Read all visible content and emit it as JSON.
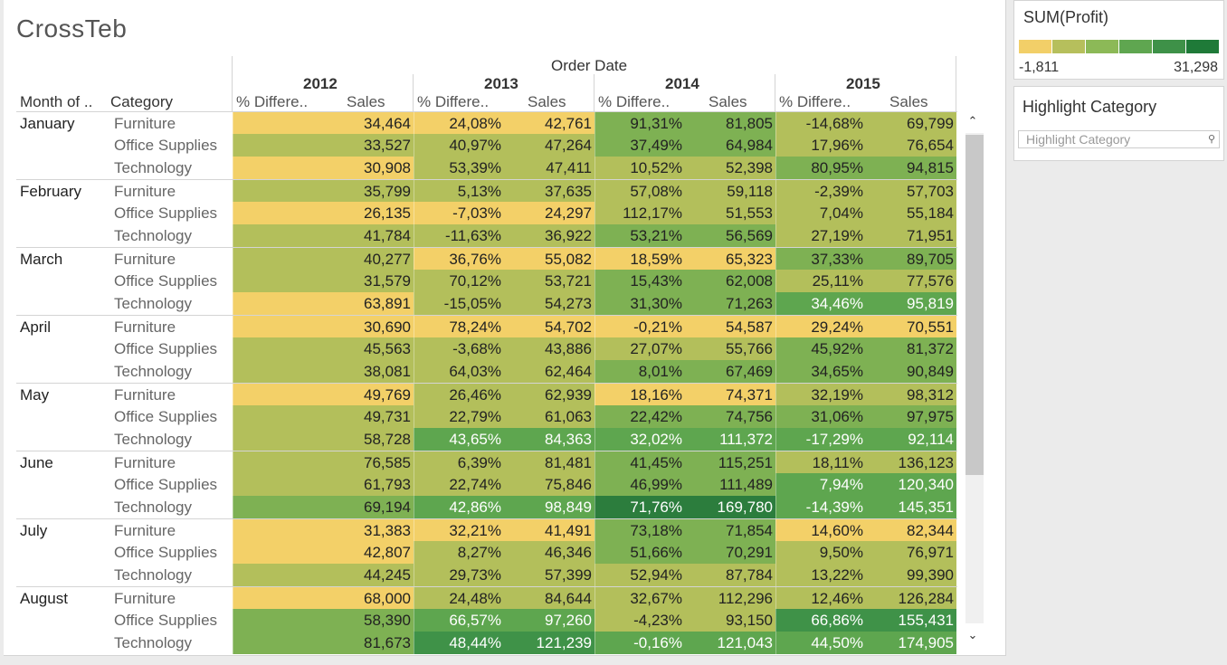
{
  "title": "CrossTeb",
  "headers": {
    "order_date": "Order Date",
    "month_of": "Month of ..",
    "category": "Category",
    "years": [
      "2012",
      "2013",
      "2014",
      "2015"
    ],
    "pct_label": "% Differe..",
    "sales_label": "Sales"
  },
  "legend": {
    "title": "SUM(Profit)",
    "min": "-1,811",
    "max": "31,298",
    "colors": [
      "#f2cf68",
      "#b6bf5c",
      "#8cb957",
      "#5fa650",
      "#3e9148",
      "#1f7a38"
    ]
  },
  "highlight": {
    "title": "Highlight Category",
    "placeholder": "Highlight Category"
  },
  "colors": {
    "y": "#f3d068",
    "l": "#b3bf5b",
    "g": "#7eb153",
    "m": "#5ea64f",
    "d": "#3f9248",
    "v": "#2c7d3d"
  },
  "rows": [
    {
      "month": "January",
      "category": "Furniture",
      "cells": [
        [
          "",
          "34,464",
          "y"
        ],
        [
          "24,08%",
          "42,761",
          "y"
        ],
        [
          "91,31%",
          "81,805",
          "g"
        ],
        [
          "-14,68%",
          "69,799",
          "l"
        ]
      ]
    },
    {
      "month": "",
      "category": "Office Supplies",
      "cells": [
        [
          "",
          "33,527",
          "l"
        ],
        [
          "40,97%",
          "47,264",
          "l"
        ],
        [
          "37,49%",
          "64,984",
          "g"
        ],
        [
          "17,96%",
          "76,654",
          "l"
        ]
      ]
    },
    {
      "month": "",
      "category": "Technology",
      "cells": [
        [
          "",
          "30,908",
          "y"
        ],
        [
          "53,39%",
          "47,411",
          "l"
        ],
        [
          "10,52%",
          "52,398",
          "l"
        ],
        [
          "80,95%",
          "94,815",
          "g"
        ]
      ]
    },
    {
      "month": "February",
      "category": "Furniture",
      "cells": [
        [
          "",
          "35,799",
          "l"
        ],
        [
          "5,13%",
          "37,635",
          "l"
        ],
        [
          "57,08%",
          "59,118",
          "l"
        ],
        [
          "-2,39%",
          "57,703",
          "l"
        ]
      ]
    },
    {
      "month": "",
      "category": "Office Supplies",
      "cells": [
        [
          "",
          "26,135",
          "y"
        ],
        [
          "-7,03%",
          "24,297",
          "y"
        ],
        [
          "112,17%",
          "51,553",
          "l"
        ],
        [
          "7,04%",
          "55,184",
          "l"
        ]
      ]
    },
    {
      "month": "",
      "category": "Technology",
      "cells": [
        [
          "",
          "41,784",
          "l"
        ],
        [
          "-11,63%",
          "36,922",
          "l"
        ],
        [
          "53,21%",
          "56,569",
          "g"
        ],
        [
          "27,19%",
          "71,951",
          "l"
        ]
      ]
    },
    {
      "month": "March",
      "category": "Furniture",
      "cells": [
        [
          "",
          "40,277",
          "l"
        ],
        [
          "36,76%",
          "55,082",
          "y"
        ],
        [
          "18,59%",
          "65,323",
          "y"
        ],
        [
          "37,33%",
          "89,705",
          "g"
        ]
      ]
    },
    {
      "month": "",
      "category": "Office Supplies",
      "cells": [
        [
          "",
          "31,579",
          "l"
        ],
        [
          "70,12%",
          "53,721",
          "l"
        ],
        [
          "15,43%",
          "62,008",
          "g"
        ],
        [
          "25,11%",
          "77,576",
          "l"
        ]
      ]
    },
    {
      "month": "",
      "category": "Technology",
      "cells": [
        [
          "",
          "63,891",
          "y"
        ],
        [
          "-15,05%",
          "54,273",
          "l"
        ],
        [
          "31,30%",
          "71,263",
          "g"
        ],
        [
          "34,46%",
          "95,819",
          "m"
        ]
      ]
    },
    {
      "month": "April",
      "category": "Furniture",
      "cells": [
        [
          "",
          "30,690",
          "y"
        ],
        [
          "78,24%",
          "54,702",
          "y"
        ],
        [
          "-0,21%",
          "54,587",
          "y"
        ],
        [
          "29,24%",
          "70,551",
          "y"
        ]
      ]
    },
    {
      "month": "",
      "category": "Office Supplies",
      "cells": [
        [
          "",
          "45,563",
          "l"
        ],
        [
          "-3,68%",
          "43,886",
          "l"
        ],
        [
          "27,07%",
          "55,766",
          "l"
        ],
        [
          "45,92%",
          "81,372",
          "g"
        ]
      ]
    },
    {
      "month": "",
      "category": "Technology",
      "cells": [
        [
          "",
          "38,081",
          "l"
        ],
        [
          "64,03%",
          "62,464",
          "l"
        ],
        [
          "8,01%",
          "67,469",
          "g"
        ],
        [
          "34,65%",
          "90,849",
          "g"
        ]
      ]
    },
    {
      "month": "May",
      "category": "Furniture",
      "cells": [
        [
          "",
          "49,769",
          "y"
        ],
        [
          "26,46%",
          "62,939",
          "l"
        ],
        [
          "18,16%",
          "74,371",
          "y"
        ],
        [
          "32,19%",
          "98,312",
          "l"
        ]
      ]
    },
    {
      "month": "",
      "category": "Office Supplies",
      "cells": [
        [
          "",
          "49,731",
          "l"
        ],
        [
          "22,79%",
          "61,063",
          "l"
        ],
        [
          "22,42%",
          "74,756",
          "g"
        ],
        [
          "31,06%",
          "97,975",
          "g"
        ]
      ]
    },
    {
      "month": "",
      "category": "Technology",
      "cells": [
        [
          "",
          "58,728",
          "l"
        ],
        [
          "43,65%",
          "84,363",
          "m"
        ],
        [
          "32,02%",
          "111,372",
          "m"
        ],
        [
          "-17,29%",
          "92,114",
          "m"
        ]
      ]
    },
    {
      "month": "June",
      "category": "Furniture",
      "cells": [
        [
          "",
          "76,585",
          "l"
        ],
        [
          "6,39%",
          "81,481",
          "l"
        ],
        [
          "41,45%",
          "115,251",
          "g"
        ],
        [
          "18,11%",
          "136,123",
          "l"
        ]
      ]
    },
    {
      "month": "",
      "category": "Office Supplies",
      "cells": [
        [
          "",
          "61,793",
          "l"
        ],
        [
          "22,74%",
          "75,846",
          "l"
        ],
        [
          "46,99%",
          "111,489",
          "g"
        ],
        [
          "7,94%",
          "120,340",
          "m"
        ]
      ]
    },
    {
      "month": "",
      "category": "Technology",
      "cells": [
        [
          "",
          "69,194",
          "g"
        ],
        [
          "42,86%",
          "98,849",
          "m"
        ],
        [
          "71,76%",
          "169,780",
          "v"
        ],
        [
          "-14,39%",
          "145,351",
          "m"
        ]
      ]
    },
    {
      "month": "July",
      "category": "Furniture",
      "cells": [
        [
          "",
          "31,383",
          "y"
        ],
        [
          "32,21%",
          "41,491",
          "y"
        ],
        [
          "73,18%",
          "71,854",
          "g"
        ],
        [
          "14,60%",
          "82,344",
          "y"
        ]
      ]
    },
    {
      "month": "",
      "category": "Office Supplies",
      "cells": [
        [
          "",
          "42,807",
          "y"
        ],
        [
          "8,27%",
          "46,346",
          "l"
        ],
        [
          "51,66%",
          "70,291",
          "g"
        ],
        [
          "9,50%",
          "76,971",
          "l"
        ]
      ]
    },
    {
      "month": "",
      "category": "Technology",
      "cells": [
        [
          "",
          "44,245",
          "l"
        ],
        [
          "29,73%",
          "57,399",
          "l"
        ],
        [
          "52,94%",
          "87,784",
          "l"
        ],
        [
          "13,22%",
          "99,390",
          "l"
        ]
      ]
    },
    {
      "month": "August",
      "category": "Furniture",
      "cells": [
        [
          "",
          "68,000",
          "y"
        ],
        [
          "24,48%",
          "84,644",
          "l"
        ],
        [
          "32,67%",
          "112,296",
          "l"
        ],
        [
          "12,46%",
          "126,284",
          "l"
        ]
      ]
    },
    {
      "month": "",
      "category": "Office Supplies",
      "cells": [
        [
          "",
          "58,390",
          "g"
        ],
        [
          "66,57%",
          "97,260",
          "m"
        ],
        [
          "-4,23%",
          "93,150",
          "l"
        ],
        [
          "66,86%",
          "155,431",
          "d"
        ]
      ]
    },
    {
      "month": "",
      "category": "Technology",
      "cells": [
        [
          "",
          "81,673",
          "g"
        ],
        [
          "48,44%",
          "121,239",
          "d"
        ],
        [
          "-0,16%",
          "121,043",
          "m"
        ],
        [
          "44,50%",
          "174,905",
          "m"
        ]
      ]
    }
  ]
}
